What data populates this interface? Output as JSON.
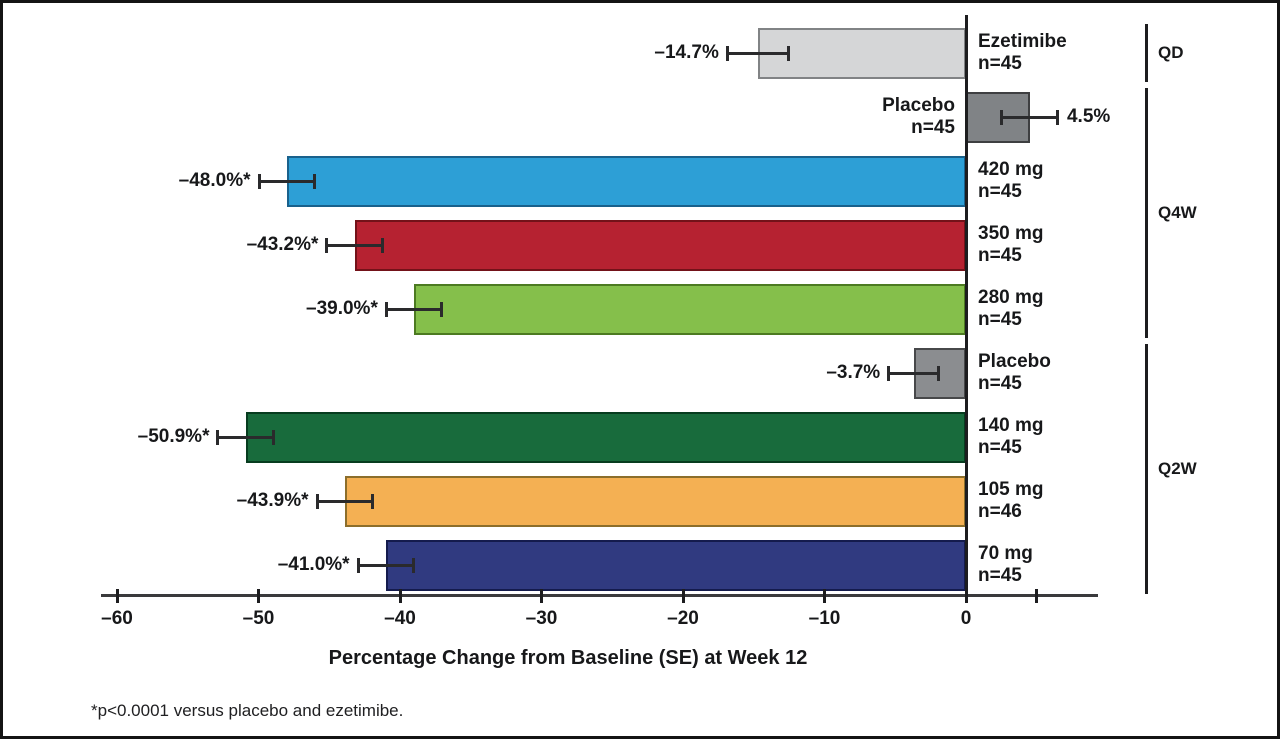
{
  "figure": {
    "background": "#ffffff",
    "border_color": "#141414",
    "text_color": "#17181a"
  },
  "chart_data": {
    "type": "bar",
    "orientation": "horizontal",
    "xlabel": "Percentage Change from Baseline (SE) at Week 12",
    "footnote": "*p<0.0001 versus placebo and ezetimibe.",
    "xlim": [
      -60,
      9
    ],
    "x_ticks": [
      {
        "v": -60,
        "label": "–60"
      },
      {
        "v": -50,
        "label": "–50"
      },
      {
        "v": -40,
        "label": "–40"
      },
      {
        "v": -30,
        "label": "–30"
      },
      {
        "v": -20,
        "label": "–20"
      },
      {
        "v": -10,
        "label": "–10"
      },
      {
        "v": 0,
        "label": "0"
      },
      {
        "v": 5,
        "label": ""
      }
    ],
    "rows": [
      {
        "label": "Ezetimibe",
        "n": "n=45",
        "value": -14.7,
        "se": 2.2,
        "value_label": "–14.7%",
        "color": "#d5d6d7",
        "border": "#818385",
        "label_side": "right"
      },
      {
        "label": "Placebo",
        "n": "n=45",
        "value": 4.5,
        "se": 2.0,
        "value_label": "4.5%",
        "color": "#808386",
        "border": "#3e3f41",
        "label_side": "left"
      },
      {
        "label": "420 mg",
        "n": "n=45",
        "value": -48.0,
        "se": 2.0,
        "value_label": "–48.0%*",
        "color": "#2d9fd6",
        "border": "#19618c",
        "label_side": "right"
      },
      {
        "label": "350 mg",
        "n": "n=45",
        "value": -43.2,
        "se": 2.0,
        "value_label": "–43.2%*",
        "color": "#b62231",
        "border": "#731219",
        "label_side": "right"
      },
      {
        "label": "280 mg",
        "n": "n=45",
        "value": -39.0,
        "se": 2.0,
        "value_label": "–39.0%*",
        "color": "#85bf4b",
        "border": "#4c7a21",
        "label_side": "right"
      },
      {
        "label": "Placebo",
        "n": "n=45",
        "value": -3.7,
        "se": 1.8,
        "value_label": "–3.7%",
        "color": "#8b8d90",
        "border": "#47484a",
        "label_side": "right"
      },
      {
        "label": "140 mg",
        "n": "n=45",
        "value": -50.9,
        "se": 2.0,
        "value_label": "–50.9%*",
        "color": "#186b3c",
        "border": "#073c1f",
        "label_side": "right"
      },
      {
        "label": "105 mg",
        "n": "n=46",
        "value": -43.9,
        "se": 2.0,
        "value_label": "–43.9%*",
        "color": "#f4b053",
        "border": "#8c6e2b",
        "label_side": "right"
      },
      {
        "label": "70 mg",
        "n": "n=45",
        "value": -41.0,
        "se": 2.0,
        "value_label": "–41.0%*",
        "color": "#303a80",
        "border": "#141b4d",
        "label_side": "right"
      }
    ],
    "groups": [
      {
        "label": "QD",
        "start_row": 0,
        "end_row": 0
      },
      {
        "label": "Q4W",
        "start_row": 1,
        "end_row": 4
      },
      {
        "label": "Q2W",
        "start_row": 5,
        "end_row": 8
      }
    ]
  }
}
